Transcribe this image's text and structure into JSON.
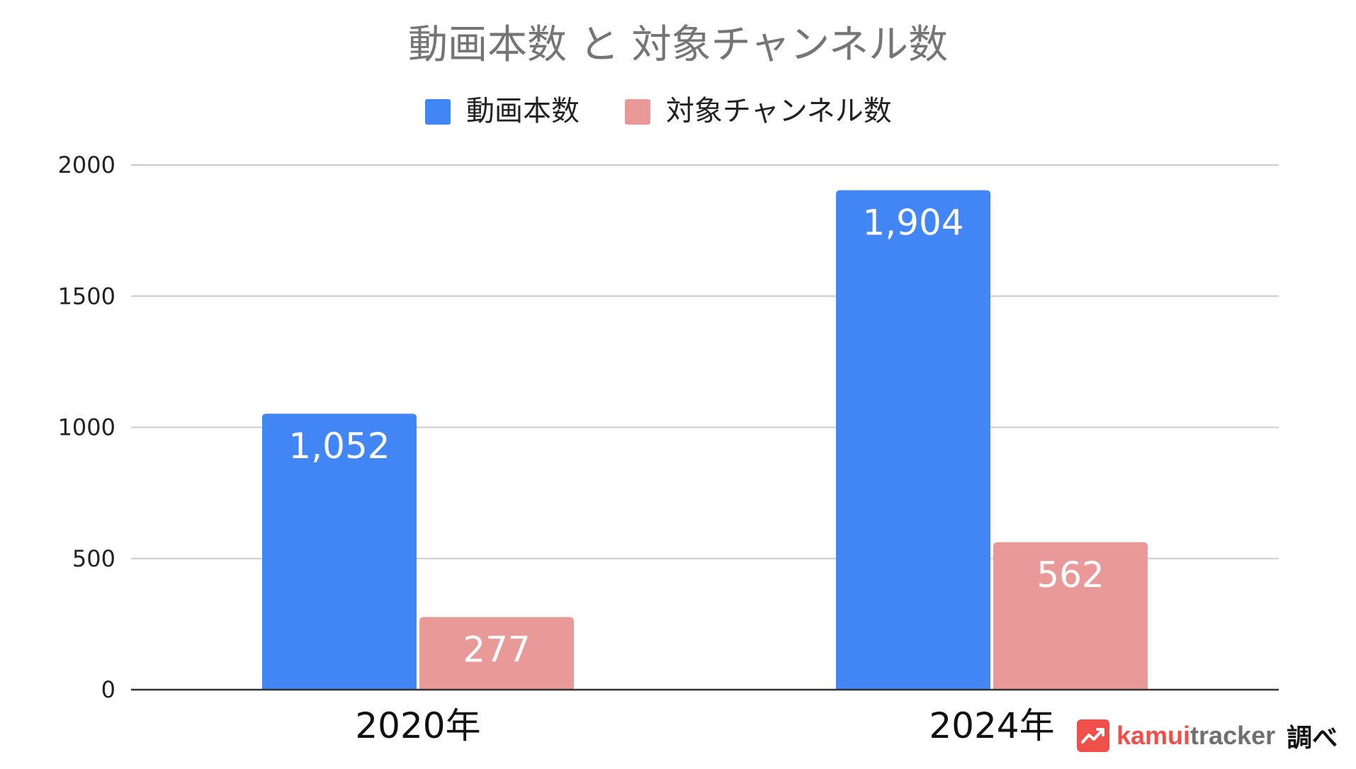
{
  "chart_data": {
    "type": "bar",
    "title": "動画本数 と 対象チャンネル数",
    "categories": [
      "2020年",
      "2024年"
    ],
    "series": [
      {
        "name": "動画本数",
        "values": [
          1052,
          1904
        ],
        "labels": [
          "1,052",
          "1,904"
        ],
        "color": "#4285f4"
      },
      {
        "name": "対象チャンネル数",
        "values": [
          277,
          562
        ],
        "labels": [
          "277",
          "562"
        ],
        "color": "#e99a98"
      }
    ],
    "ylim": [
      0,
      2000
    ],
    "yticks": [
      "0",
      "500",
      "1000",
      "1500",
      "2000"
    ],
    "grid": true,
    "legend": "top"
  },
  "credit": {
    "logo_kamui": "kamui",
    "logo_tracker": "tracker",
    "suffix": "調べ",
    "brand_color": "#f0504a"
  }
}
